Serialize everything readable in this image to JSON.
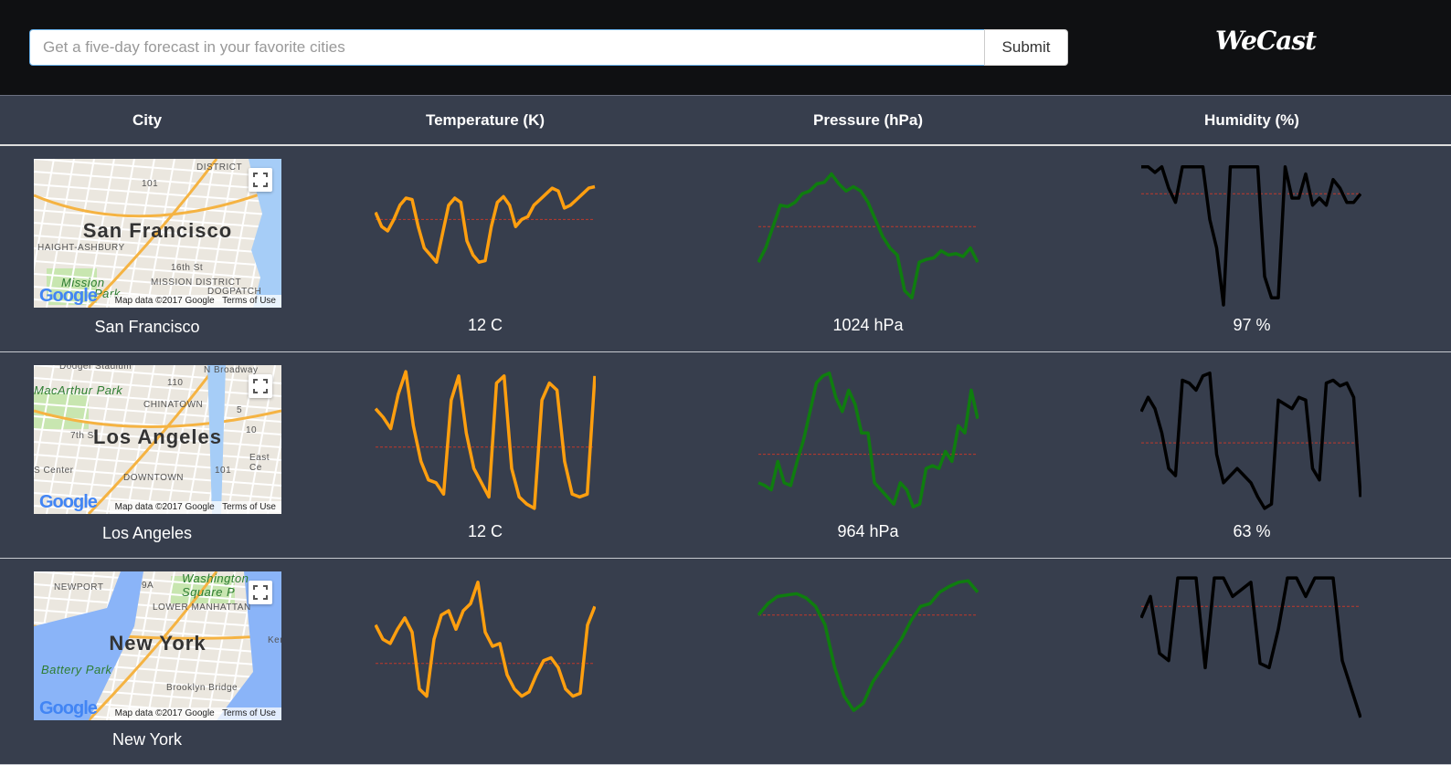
{
  "header": {
    "search_placeholder": "Get a five-day forecast in your favorite cities",
    "submit_label": "Submit",
    "logo": "WeCast"
  },
  "columns": [
    "City",
    "Temperature (K)",
    "Pressure (hPa)",
    "Humidity (%)"
  ],
  "colors": {
    "temperature": "#ff9f0f",
    "pressure": "#0f7d0f",
    "humidity": "#000000",
    "reference_line": "#c0392b"
  },
  "map_attribution": "Map data ©2017 Google",
  "map_terms": "Terms of Use",
  "map_logo": "Google",
  "rows": [
    {
      "city": "San Francisco",
      "map_title": "San Francisco",
      "map_labels": [
        "DISTRICT",
        "101",
        "HAIGHT-ASHBURY",
        "16th St",
        "Mission",
        "MISSION DISTRICT",
        "DOGPATCH",
        "Park"
      ],
      "temp_text": "12 C",
      "pressure_text": "1024 hPa",
      "humidity_text": "97 %",
      "temp": [
        0.65,
        0.55,
        0.52,
        0.6,
        0.7,
        0.75,
        0.74,
        0.55,
        0.4,
        0.35,
        0.3,
        0.5,
        0.7,
        0.75,
        0.72,
        0.45,
        0.35,
        0.3,
        0.31,
        0.55,
        0.72,
        0.76,
        0.7,
        0.55,
        0.6,
        0.62,
        0.7,
        0.74,
        0.78,
        0.82,
        0.8,
        0.68,
        0.7,
        0.74,
        0.78,
        0.82,
        0.83
      ],
      "temp_mean": 0.6,
      "pressure": [
        0.3,
        0.4,
        0.55,
        0.7,
        0.69,
        0.72,
        0.78,
        0.8,
        0.85,
        0.86,
        0.92,
        0.85,
        0.8,
        0.83,
        0.8,
        0.72,
        0.6,
        0.48,
        0.4,
        0.35,
        0.1,
        0.05,
        0.3,
        0.32,
        0.33,
        0.38,
        0.35,
        0.36,
        0.34,
        0.4,
        0.3
      ],
      "pressure_mean": 0.55,
      "humidity": [
        0.97,
        0.97,
        0.93,
        0.97,
        0.82,
        0.72,
        0.97,
        0.97,
        0.97,
        0.97,
        0.6,
        0.4,
        0.0,
        0.97,
        0.97,
        0.97,
        0.97,
        0.97,
        0.2,
        0.05,
        0.05,
        0.97,
        0.75,
        0.75,
        0.92,
        0.7,
        0.75,
        0.7,
        0.88,
        0.82,
        0.72,
        0.72,
        0.78
      ],
      "humidity_mean": 0.78
    },
    {
      "city": "Los Angeles",
      "map_title": "Los Angeles",
      "map_labels": [
        "Dodger Stadium",
        "110",
        "N Broadway",
        "MacArthur Park",
        "CHINATOWN",
        "5",
        "10",
        "7th St",
        "East Ce",
        "S Center",
        "DOWNTOWN",
        "101"
      ],
      "temp_text": "12 C",
      "pressure_text": "964 hPa",
      "humidity_text": "63 %",
      "temp": [
        0.72,
        0.66,
        0.58,
        0.82,
        0.98,
        0.6,
        0.35,
        0.22,
        0.2,
        0.12,
        0.78,
        0.95,
        0.55,
        0.3,
        0.2,
        0.1,
        0.9,
        0.95,
        0.3,
        0.1,
        0.05,
        0.02,
        0.78,
        0.9,
        0.85,
        0.35,
        0.12,
        0.1,
        0.12,
        0.95
      ],
      "temp_mean": 0.45,
      "pressure": [
        0.2,
        0.18,
        0.15,
        0.35,
        0.2,
        0.18,
        0.35,
        0.5,
        0.7,
        0.9,
        0.95,
        0.97,
        0.8,
        0.7,
        0.85,
        0.75,
        0.55,
        0.55,
        0.2,
        0.15,
        0.1,
        0.05,
        0.2,
        0.15,
        0.03,
        0.05,
        0.3,
        0.32,
        0.3,
        0.42,
        0.35,
        0.6,
        0.55,
        0.85,
        0.65
      ],
      "pressure_mean": 0.4,
      "humidity": [
        0.7,
        0.8,
        0.72,
        0.55,
        0.3,
        0.25,
        0.92,
        0.9,
        0.85,
        0.95,
        0.97,
        0.4,
        0.2,
        0.25,
        0.3,
        0.25,
        0.2,
        0.1,
        0.02,
        0.05,
        0.78,
        0.75,
        0.72,
        0.8,
        0.78,
        0.3,
        0.22,
        0.9,
        0.92,
        0.88,
        0.9,
        0.8,
        0.1
      ],
      "humidity_mean": 0.48
    },
    {
      "city": "New York",
      "map_title": "New York",
      "map_labels": [
        "NEWPORT",
        "9A",
        "Washington Square P",
        "LOWER MANHATTAN",
        "Battery Park",
        "Brooklyn Bridge",
        "Kent"
      ],
      "temp_text": "",
      "pressure_text": "",
      "humidity_text": "",
      "temp": [
        0.65,
        0.55,
        0.52,
        0.62,
        0.7,
        0.6,
        0.2,
        0.15,
        0.55,
        0.72,
        0.75,
        0.62,
        0.75,
        0.8,
        0.95,
        0.6,
        0.5,
        0.52,
        0.3,
        0.2,
        0.15,
        0.18,
        0.3,
        0.4,
        0.42,
        0.35,
        0.2,
        0.15,
        0.17,
        0.65,
        0.78
      ],
      "temp_mean": 0.38,
      "pressure": [
        0.72,
        0.8,
        0.85,
        0.86,
        0.87,
        0.84,
        0.78,
        0.65,
        0.35,
        0.15,
        0.05,
        0.1,
        0.25,
        0.35,
        0.45,
        0.55,
        0.68,
        0.78,
        0.8,
        0.88,
        0.92,
        0.95,
        0.96,
        0.88
      ],
      "pressure_mean": 0.72,
      "humidity": [
        0.7,
        0.85,
        0.45,
        0.4,
        0.98,
        0.98,
        0.98,
        0.35,
        0.98,
        0.98,
        0.85,
        0.9,
        0.95,
        0.38,
        0.35,
        0.62,
        0.98,
        0.98,
        0.85,
        0.98,
        0.98,
        0.98,
        0.4,
        0.2,
        0.0
      ],
      "humidity_mean": 0.78
    }
  ]
}
